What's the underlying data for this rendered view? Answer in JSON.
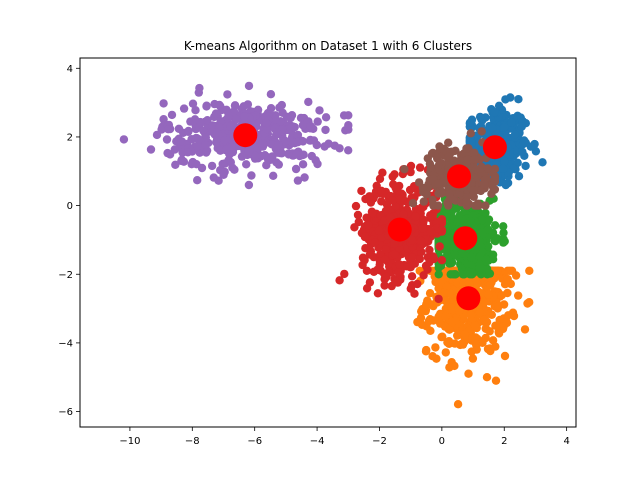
{
  "chart_data": {
    "type": "scatter",
    "title": "K-means Algorithm on Dataset 1 with 6 Clusters",
    "xlabel": "",
    "ylabel": "",
    "xlim": [
      -11.6,
      4.3
    ],
    "ylim": [
      -6.45,
      4.3
    ],
    "x_ticks": [
      -10,
      -8,
      -6,
      -4,
      -2,
      0,
      2,
      4
    ],
    "y_ticks": [
      -6,
      -4,
      -2,
      0,
      2,
      4
    ],
    "x_tick_labels": [
      "−10",
      "−8",
      "−6",
      "−4",
      "−2",
      "0",
      "2",
      "4"
    ],
    "y_tick_labels": [
      "−6",
      "−4",
      "−2",
      "0",
      "2",
      "4"
    ],
    "grid": false,
    "legend": "none",
    "clusters": [
      {
        "color": "#1f77b4",
        "center": [
          1.7,
          1.7
        ],
        "spread": [
          0.55,
          0.6
        ],
        "count": 320,
        "box": [
          0.9,
          3.3,
          0.6,
          3.7
        ]
      },
      {
        "color": "#ff7f0e",
        "center": [
          0.85,
          -2.7
        ],
        "spread": [
          0.65,
          0.8
        ],
        "count": 480,
        "box": [
          -0.8,
          2.9,
          -1.9,
          -5.9
        ]
      },
      {
        "color": "#2ca02c",
        "center": [
          0.75,
          -0.95
        ],
        "spread": [
          0.55,
          0.55
        ],
        "count": 420,
        "box": [
          -0.1,
          2.8,
          0.2,
          -2.0
        ]
      },
      {
        "color": "#d62728",
        "center": [
          -1.35,
          -0.7
        ],
        "spread": [
          0.6,
          0.7
        ],
        "count": 480,
        "box": [
          -3.6,
          0.0,
          1.9,
          -2.8
        ]
      },
      {
        "color": "#9467bd",
        "center": [
          -6.3,
          2.05
        ],
        "spread": [
          1.3,
          0.5
        ],
        "count": 420,
        "box": [
          -11.2,
          -3.0,
          0.3,
          3.8
        ]
      },
      {
        "color": "#8c564b",
        "center": [
          0.55,
          0.85
        ],
        "spread": [
          0.55,
          0.45
        ],
        "count": 260,
        "box": [
          -1.2,
          1.7,
          0.0,
          2.3
        ]
      }
    ],
    "centroids": [
      [
        1.7,
        1.7
      ],
      [
        0.85,
        -2.7
      ],
      [
        0.75,
        -0.95
      ],
      [
        -1.35,
        -0.7
      ],
      [
        -6.3,
        2.05
      ],
      [
        0.55,
        0.85
      ]
    ],
    "centroid_color": "#ff0000"
  }
}
